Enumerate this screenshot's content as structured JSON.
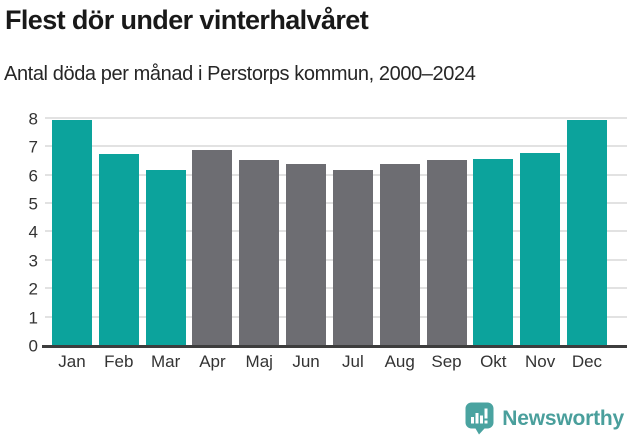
{
  "header": {
    "title": "Flest dör under vinterhalvåret",
    "subtitle": "Antal döda per månad i Perstorps kommun, 2000–2024"
  },
  "chart_data": {
    "type": "bar",
    "title": "Flest dör under vinterhalvåret",
    "subtitle": "Antal döda per månad i Perstorps kommun, 2000–2024",
    "categories": [
      "Jan",
      "Feb",
      "Mar",
      "Apr",
      "Maj",
      "Jun",
      "Jul",
      "Aug",
      "Sep",
      "Okt",
      "Nov",
      "Dec"
    ],
    "values": [
      7.95,
      6.75,
      6.2,
      6.9,
      6.55,
      6.4,
      6.2,
      6.4,
      6.55,
      6.6,
      6.8,
      7.95
    ],
    "color_keys": [
      "winter",
      "winter",
      "winter",
      "summer",
      "summer",
      "summer",
      "summer",
      "summer",
      "summer",
      "winter",
      "winter",
      "winter"
    ],
    "xlabel": "",
    "ylabel": "",
    "ylim": [
      0,
      8
    ],
    "yticks": [
      0,
      1,
      2,
      3,
      4,
      5,
      6,
      7,
      8
    ],
    "grid": true,
    "legend_position": "none"
  },
  "colors": {
    "winter_bar": "#0ca39c",
    "summer_bar": "#6d6d72",
    "gridline": "#e2e2e2",
    "axis_line": "#3d3d3d",
    "brand_teal": "#4a9f9c",
    "icon_teal": "#4aa3a0"
  },
  "footer": {
    "brand": "Newsworthy"
  }
}
